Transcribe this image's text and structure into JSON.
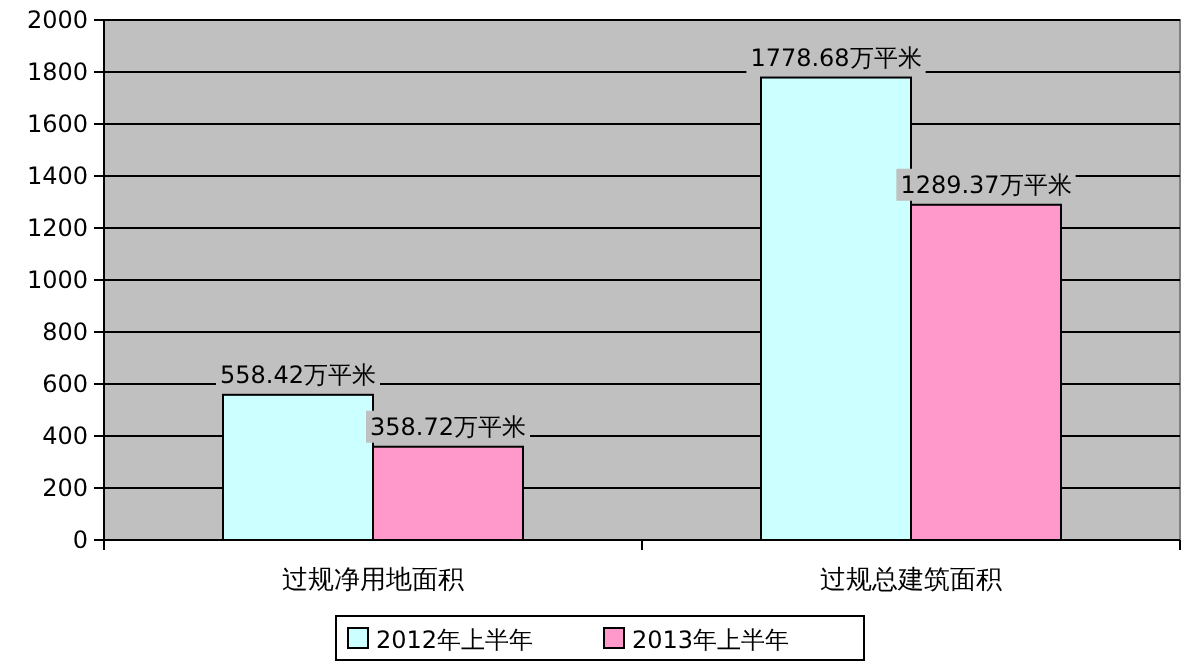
{
  "chart_data": {
    "type": "bar",
    "categories": [
      "过规净用地面积",
      "过规总建筑面积"
    ],
    "series": [
      {
        "name": "2012年上半年",
        "color": "#ccffff",
        "values": [
          558.42,
          1778.68
        ],
        "value_labels": [
          "558.42万平米",
          "1778.68万平米"
        ]
      },
      {
        "name": "2013年上半年",
        "color": "#ff99cc",
        "values": [
          358.72,
          1289.37
        ],
        "value_labels": [
          "358.72万平米",
          "1289.37万平米"
        ]
      }
    ],
    "ylim": [
      0,
      2000
    ],
    "yticks": [
      0,
      200,
      400,
      600,
      800,
      1000,
      1200,
      1400,
      1600,
      1800,
      2000
    ],
    "grid": "y",
    "legend": "bottom"
  }
}
